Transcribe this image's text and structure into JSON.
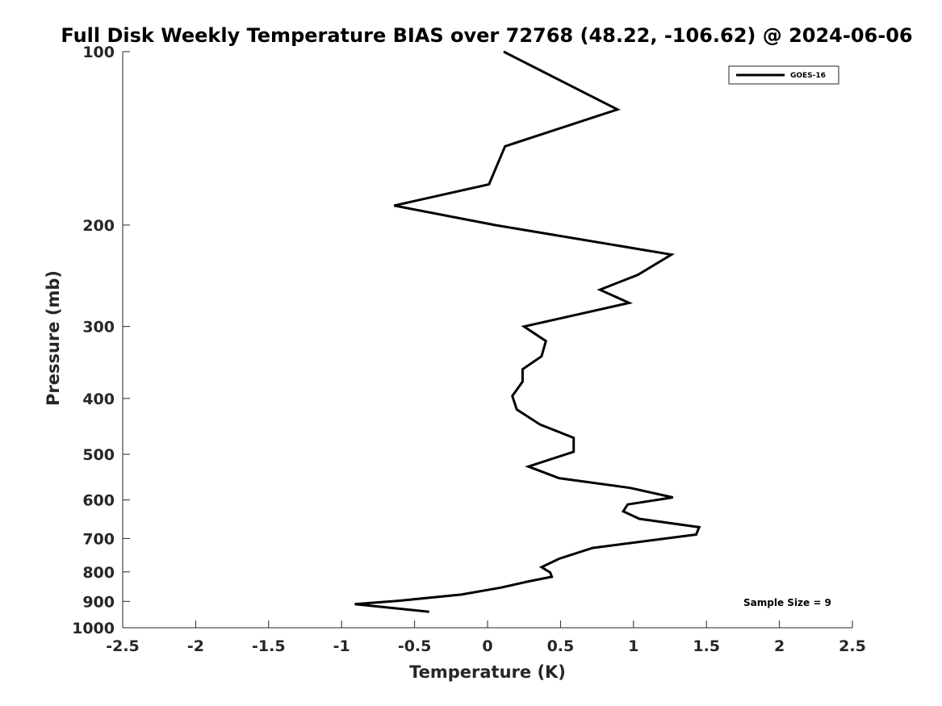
{
  "chart_data": {
    "type": "line",
    "title": "Full Disk Weekly Temperature BIAS over 72768 (48.22, -106.62) @ 2024-06-06",
    "xlabel": "Temperature (K)",
    "ylabel": "Pressure (mb)",
    "xlim": [
      -2.5,
      2.5
    ],
    "ylim": [
      100,
      1000
    ],
    "y_scale": "log",
    "y_reversed": true,
    "grid": false,
    "legend_position": "top-right",
    "x_ticks": [
      -2.5,
      -2,
      -1.5,
      -1,
      -0.5,
      0,
      0.5,
      1,
      1.5,
      2,
      2.5
    ],
    "x_tick_labels": [
      "-2.5",
      "-2",
      "-1.5",
      "-1",
      "-0.5",
      "0",
      "0.5",
      "1",
      "1.5",
      "2",
      "2.5"
    ],
    "y_ticks": [
      100,
      200,
      300,
      400,
      500,
      600,
      700,
      800,
      900,
      1000
    ],
    "y_tick_labels": [
      "100",
      "200",
      "300",
      "400",
      "500",
      "600",
      "700",
      "800",
      "900",
      "1000"
    ],
    "annotation": "Sample Size = 9",
    "series": [
      {
        "name": "GOES-16",
        "color": "#000000",
        "points": [
          [
            0.11,
            100
          ],
          [
            0.89,
            126
          ],
          [
            0.12,
            146
          ],
          [
            0.01,
            170
          ],
          [
            -0.64,
            185
          ],
          [
            0.05,
            200
          ],
          [
            1.26,
            225
          ],
          [
            1.03,
            244
          ],
          [
            0.77,
            259
          ],
          [
            0.97,
            273
          ],
          [
            0.25,
            300
          ],
          [
            0.4,
            318
          ],
          [
            0.37,
            338
          ],
          [
            0.24,
            356
          ],
          [
            0.24,
            374
          ],
          [
            0.17,
            396
          ],
          [
            0.2,
            418
          ],
          [
            0.36,
            444
          ],
          [
            0.59,
            468
          ],
          [
            0.59,
            495
          ],
          [
            0.28,
            525
          ],
          [
            0.49,
            550
          ],
          [
            0.98,
            572
          ],
          [
            1.27,
            594
          ],
          [
            0.96,
            611
          ],
          [
            0.93,
            628
          ],
          [
            1.04,
            647
          ],
          [
            1.45,
            669
          ],
          [
            1.43,
            689
          ],
          [
            0.72,
            727
          ],
          [
            0.49,
            759
          ],
          [
            0.37,
            785
          ],
          [
            0.43,
            802
          ],
          [
            0.44,
            816
          ],
          [
            0.28,
            831
          ],
          [
            0.09,
            852
          ],
          [
            -0.18,
            876
          ],
          [
            -0.61,
            898
          ],
          [
            -0.91,
            910
          ],
          [
            -0.4,
            938
          ]
        ]
      }
    ]
  }
}
